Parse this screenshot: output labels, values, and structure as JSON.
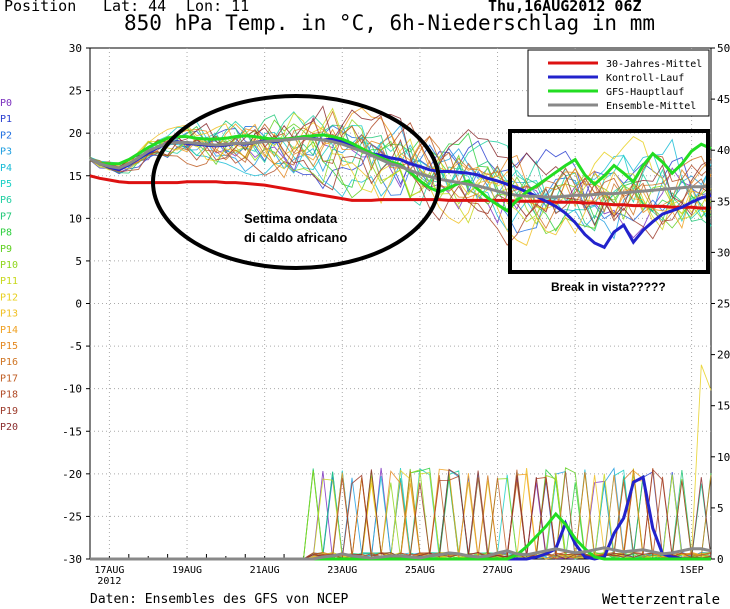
{
  "header": {
    "position_label": "Position",
    "lat_label": "Lat: 44",
    "lon_label": "Lon: 11",
    "run_date": "Thu,16AUG2012 06Z",
    "title": "850 hPa Temp. in °C, 6h-Niederschlag in mm"
  },
  "footer": {
    "source": "Daten: Ensembles des GFS von NCEP",
    "brand": "Wetterzentrale"
  },
  "colors": {
    "mittel30": "#dd1111",
    "kontroll": "#2222cc",
    "gfs": "#22dd22",
    "ensemble": "#888888"
  },
  "member_labels": [
    "P0",
    "P1",
    "P2",
    "P3",
    "P4",
    "P5",
    "P6",
    "P7",
    "P8",
    "P9",
    "P10",
    "P11",
    "P12",
    "P13",
    "P14",
    "P15",
    "P16",
    "P17",
    "P18",
    "P19",
    "P20"
  ],
  "member_colors": [
    "#7b2fbe",
    "#2a3fd0",
    "#1f6fe0",
    "#1e9ee0",
    "#17bcd6",
    "#18cfc4",
    "#1ecfa0",
    "#20c878",
    "#2ecf3e",
    "#5fd020",
    "#8fd61c",
    "#c8d81c",
    "#e8d020",
    "#f0bf22",
    "#f0a020",
    "#e48820",
    "#cf7422",
    "#c05e24",
    "#b04a26",
    "#9c3a2a",
    "#8a2c2e"
  ],
  "annotations": {
    "heatwave": "Settima ondata di caldo africano",
    "break": "Break in vista?????"
  },
  "chart_data": {
    "type": "line",
    "title": "850 hPa Temp. in °C, 6h-Niederschlag in mm",
    "x_ticks": [
      "17AUG\n2012",
      "19AUG",
      "21AUG",
      "23AUG",
      "25AUG",
      "27AUG",
      "29AUG",
      "1SEP"
    ],
    "y_left": {
      "label": "°C",
      "range": [
        -30,
        30
      ],
      "ticks": [
        30,
        25,
        20,
        15,
        10,
        5,
        0,
        -5,
        -10,
        -15,
        -20,
        -25,
        -30
      ]
    },
    "y_right": {
      "label": "mm",
      "range": [
        0,
        50
      ],
      "ticks": [
        50,
        45,
        40,
        35,
        30,
        25,
        20,
        15,
        10,
        5,
        0
      ]
    },
    "grid": true,
    "legend_position": "top-right",
    "x_days": [
      0,
      0.25,
      0.5,
      0.75,
      1,
      1.25,
      1.5,
      1.75,
      2,
      2.25,
      2.5,
      2.75,
      3,
      3.25,
      3.5,
      3.75,
      4,
      4.25,
      4.5,
      4.75,
      5,
      5.25,
      5.5,
      5.75,
      6,
      6.25,
      6.5,
      6.75,
      7,
      7.25,
      7.5,
      7.75,
      8,
      8.25,
      8.5,
      8.75,
      9,
      9.25,
      9.5,
      9.75,
      10,
      10.25,
      10.5,
      10.75,
      11,
      11.25,
      11.5,
      11.75,
      12,
      12.25,
      12.5,
      12.75,
      13,
      13.25,
      13.5,
      13.75,
      14,
      14.25,
      14.5,
      14.75,
      15,
      15.25,
      15.5,
      15.75,
      16
    ],
    "series": [
      {
        "name": "30-Jahres-Mittel",
        "values": [
          15,
          14.7,
          14.5,
          14.3,
          14.2,
          14.2,
          14.2,
          14.2,
          14.2,
          14.2,
          14.3,
          14.3,
          14.3,
          14.3,
          14.2,
          14.2,
          14.1,
          14,
          13.9,
          13.7,
          13.5,
          13.3,
          13.1,
          12.9,
          12.7,
          12.5,
          12.3,
          12.1,
          12.1,
          12.1,
          12.2,
          12.2,
          12.2,
          12.2,
          12.2,
          12.2,
          12.2,
          12.1,
          12.1,
          12.1,
          12.1,
          12.1,
          12.1,
          12.1,
          12,
          12,
          12,
          12,
          11.9,
          11.9,
          11.9,
          11.8,
          11.8,
          11.7,
          11.6,
          11.6,
          11.5,
          11.5,
          11.4,
          11.4,
          11.3,
          11.3,
          11.3,
          11.2,
          11.2
        ]
      },
      {
        "name": "Kontroll-Lauf",
        "values": [
          17,
          16.4,
          16,
          15.7,
          16.3,
          17,
          17.7,
          18.3,
          18.8,
          19,
          18.8,
          18.7,
          18.6,
          18.5,
          18.6,
          18.8,
          18.7,
          18.9,
          19.1,
          19,
          19.2,
          19.4,
          19.6,
          19.4,
          19.2,
          19.3,
          19,
          18.6,
          18.1,
          17.6,
          17.4,
          17.1,
          16.9,
          16.4,
          16.1,
          15.7,
          15.5,
          15.5,
          15.4,
          15.3,
          15.1,
          14.7,
          14.4,
          14,
          13.6,
          13.1,
          12.6,
          12,
          11.4,
          10.6,
          9.5,
          8.1,
          7.1,
          6.6,
          8.4,
          9.2,
          7.2,
          8.6,
          9.6,
          10.5,
          10.9,
          11.3,
          11.9,
          12.4,
          12.7
        ]
      },
      {
        "name": "GFS-Hauptlauf",
        "values": [
          17,
          16.4,
          16.4,
          16.4,
          16.9,
          17.6,
          18.3,
          18.9,
          19.4,
          19.6,
          19.6,
          19.4,
          19.3,
          19.3,
          19.4,
          19.6,
          19.7,
          19.6,
          19.4,
          19.3,
          19.3,
          19.4,
          19.6,
          19.7,
          19.8,
          19.6,
          19.3,
          18.8,
          18.2,
          17.6,
          17.1,
          16.6,
          16.3,
          15.4,
          14.4,
          13.6,
          13.1,
          13.6,
          14.1,
          14.4,
          13.4,
          12.4,
          11.6,
          10.9,
          12.1,
          13.1,
          13.8,
          14.6,
          15.4,
          16.2,
          16.9,
          15.1,
          14,
          15,
          16.2,
          15.3,
          14.3,
          16.2,
          17.6,
          16.6,
          15.3,
          16.4,
          17.9,
          18.7,
          18.2
        ]
      },
      {
        "name": "Ensemble-Mittel",
        "values": [
          17,
          16.4,
          16.1,
          15.9,
          16.4,
          17.1,
          17.9,
          18.4,
          18.8,
          18.9,
          18.9,
          18.8,
          18.7,
          18.6,
          18.7,
          18.8,
          18.8,
          18.9,
          19,
          19.1,
          19.2,
          19.3,
          19.4,
          19.3,
          19.2,
          19,
          18.7,
          18.3,
          17.9,
          17.4,
          16.9,
          16.4,
          16.1,
          15.6,
          15.2,
          14.9,
          14.6,
          14.4,
          14.2,
          14,
          13.8,
          13.5,
          13.2,
          12.9,
          12.7,
          12.6,
          12.6,
          12.5,
          12.5,
          12.6,
          12.7,
          12.7,
          12.8,
          12.9,
          12.9,
          13,
          13.1,
          13.2,
          13.3,
          13.4,
          13.5,
          13.6,
          13.7,
          13.7,
          13.8
        ]
      }
    ],
    "precip_series": [
      {
        "name": "Kontroll-Lauf",
        "values": [
          0,
          0,
          0,
          0,
          0,
          0,
          0,
          0,
          0,
          0,
          0,
          0,
          0,
          0,
          0,
          0,
          0,
          0,
          0,
          0,
          0,
          0,
          0,
          0,
          0,
          0,
          0,
          0,
          0,
          0,
          0,
          0,
          0,
          0,
          0,
          0,
          0,
          0,
          0,
          0,
          0,
          0,
          0,
          0,
          0,
          0,
          0.2,
          0.5,
          1,
          3.5,
          1.5,
          0.2,
          0,
          0.2,
          2.5,
          4,
          7.5,
          8,
          3,
          0.5,
          0.2,
          0,
          0,
          0,
          0
        ]
      },
      {
        "name": "GFS-Hauptlauf",
        "values": [
          0,
          0,
          0,
          0,
          0,
          0,
          0,
          0,
          0,
          0,
          0,
          0,
          0,
          0,
          0,
          0,
          0,
          0,
          0,
          0,
          0,
          0,
          0,
          0,
          0,
          0,
          0,
          0,
          0,
          0,
          0,
          0,
          0,
          0,
          0,
          0,
          0,
          0,
          0,
          0,
          0,
          0,
          0,
          0,
          0.4,
          1.2,
          2.2,
          3.2,
          4.4,
          3.4,
          2,
          1,
          0.2,
          0,
          0,
          0,
          0,
          0,
          0,
          0,
          0,
          0,
          0,
          0,
          0
        ]
      },
      {
        "name": "Ensemble-Mittel",
        "values": [
          0,
          0,
          0,
          0,
          0,
          0,
          0,
          0,
          0,
          0,
          0,
          0,
          0,
          0,
          0,
          0,
          0,
          0,
          0,
          0,
          0,
          0,
          0,
          0,
          0.2,
          0.3,
          0.5,
          0.3,
          0.2,
          0.1,
          0.2,
          0.3,
          0.3,
          0.2,
          0.1,
          0.3,
          0.4,
          0.6,
          0.5,
          0.3,
          0.2,
          0.3,
          0.6,
          0.8,
          0.5,
          0.4,
          0.6,
          0.8,
          1,
          0.8,
          0.6,
          0.7,
          0.9,
          1.1,
          0.9,
          0.7,
          0.8,
          0.9,
          0.7,
          0.5,
          0.6,
          0.8,
          1,
          1,
          0.8
        ]
      }
    ]
  }
}
